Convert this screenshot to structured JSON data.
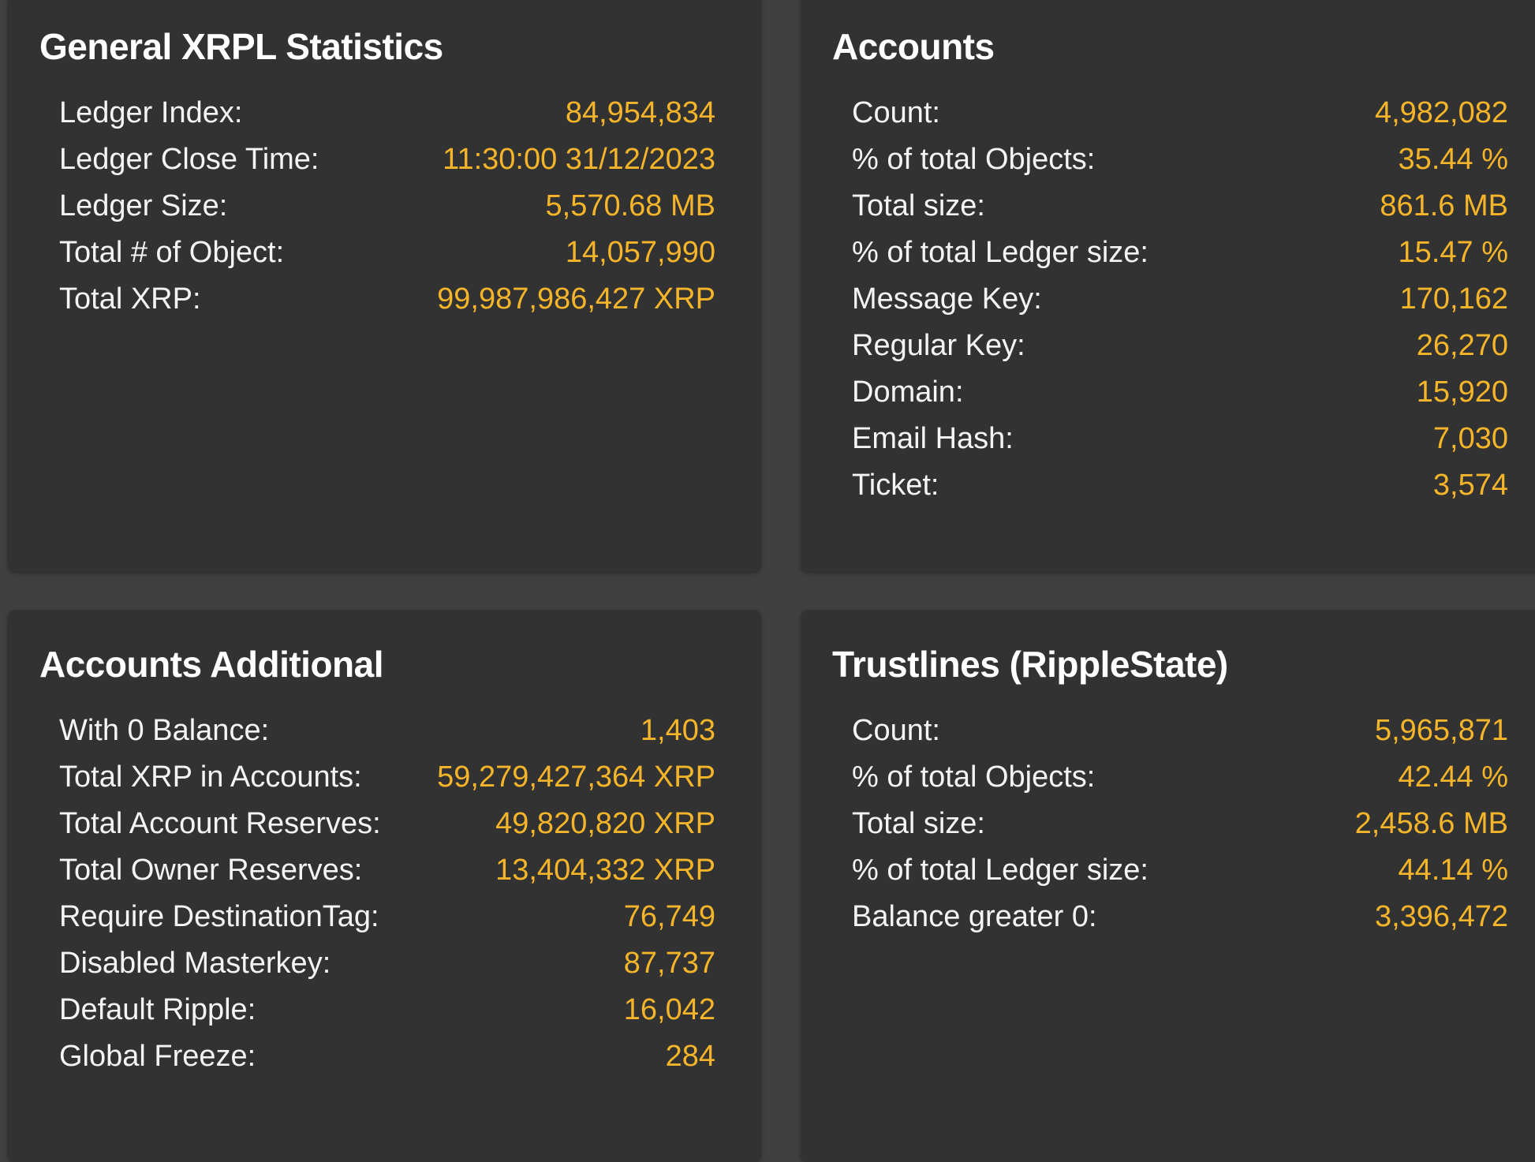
{
  "theme": {
    "background": "#404040",
    "card_background": "#323232",
    "label_color": "#f4f4f4",
    "value_color": "#f5b52a"
  },
  "general": {
    "title": "General XRPL Statistics",
    "rows": [
      {
        "label": "Ledger Index:",
        "value": "84,954,834"
      },
      {
        "label": "Ledger Close Time:",
        "value": "11:30:00 31/12/2023"
      },
      {
        "label": "Ledger Size:",
        "value": "5,570.68 MB"
      },
      {
        "label": "Total # of Object:",
        "value": "14,057,990"
      },
      {
        "label": "Total XRP:",
        "value": "99,987,986,427 XRP"
      }
    ]
  },
  "accounts": {
    "title": "Accounts",
    "rows": [
      {
        "label": "Count:",
        "value": "4,982,082"
      },
      {
        "label": "% of total Objects:",
        "value": "35.44 %"
      },
      {
        "label": "Total size:",
        "value": "861.6 MB"
      },
      {
        "label": "% of total Ledger size:",
        "value": "15.47 %"
      },
      {
        "label": "Message Key:",
        "value": "170,162"
      },
      {
        "label": "Regular Key:",
        "value": "26,270"
      },
      {
        "label": "Domain:",
        "value": "15,920"
      },
      {
        "label": "Email Hash:",
        "value": "7,030"
      },
      {
        "label": "Ticket:",
        "value": "3,574"
      }
    ]
  },
  "accounts_additional": {
    "title": "Accounts Additional",
    "rows": [
      {
        "label": "With 0 Balance:",
        "value": "1,403"
      },
      {
        "label": "Total XRP in Accounts:",
        "value": "59,279,427,364 XRP"
      },
      {
        "label": "Total Account Reserves:",
        "value": "49,820,820 XRP"
      },
      {
        "label": "Total Owner Reserves:",
        "value": "13,404,332 XRP"
      },
      {
        "label": "Require DestinationTag:",
        "value": "76,749"
      },
      {
        "label": "Disabled Masterkey:",
        "value": "87,737"
      },
      {
        "label": "Default Ripple:",
        "value": "16,042"
      },
      {
        "label": "Global Freeze:",
        "value": "284"
      }
    ]
  },
  "trustlines": {
    "title": "Trustlines (RippleState)",
    "rows": [
      {
        "label": "Count:",
        "value": "5,965,871"
      },
      {
        "label": "% of total Objects:",
        "value": "42.44 %"
      },
      {
        "label": "Total size:",
        "value": "2,458.6 MB"
      },
      {
        "label": "% of total Ledger size:",
        "value": "44.14 %"
      },
      {
        "label": "Balance greater 0:",
        "value": "3,396,472"
      }
    ]
  }
}
